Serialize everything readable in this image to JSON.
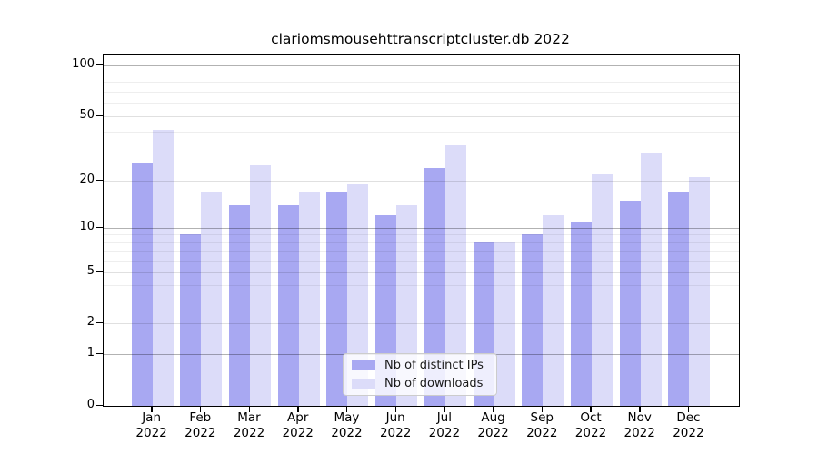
{
  "chart_data": {
    "type": "bar",
    "title": "clariomsmousehttranscriptcluster.db 2022",
    "categories": [
      "Jan",
      "Feb",
      "Mar",
      "Apr",
      "May",
      "Jun",
      "Jul",
      "Aug",
      "Sep",
      "Oct",
      "Nov",
      "Dec"
    ],
    "category_year": "2022",
    "series": [
      {
        "name": "Nb of distinct IPs",
        "color": "#a8a8f2",
        "values": [
          26,
          9,
          14,
          14,
          17,
          12,
          24,
          8,
          9,
          11,
          15,
          17
        ]
      },
      {
        "name": "Nb of downloads",
        "color": "#dcdcf9",
        "values": [
          41,
          17,
          25,
          17,
          19,
          14,
          33,
          8,
          12,
          22,
          30,
          21
        ]
      }
    ],
    "xlabel": "",
    "ylabel": "",
    "yscale": "log",
    "y_ticks": [
      {
        "value": 100,
        "label": "100"
      },
      {
        "value": 50,
        "label": "50"
      },
      {
        "value": 20,
        "label": "20"
      },
      {
        "value": 10,
        "label": "10"
      },
      {
        "value": 5,
        "label": "5"
      },
      {
        "value": 2,
        "label": "2"
      },
      {
        "value": 1,
        "label": "1"
      },
      {
        "value": 0,
        "label": "0"
      }
    ],
    "y_minor_gridlines": [
      2,
      3,
      4,
      5,
      6,
      7,
      8,
      9,
      20,
      30,
      40,
      50,
      60,
      70,
      80,
      90
    ],
    "y_major_gridlines": [
      1,
      10,
      100
    ],
    "grid": true,
    "legend_position": "lower center (inside plot)",
    "colors": {
      "axis": "#000000",
      "grid_major": "#b3b3b3",
      "grid_minor": "#f0f0f0",
      "background": "#ffffff"
    }
  },
  "legend": {
    "entries": [
      "Nb of distinct IPs",
      "Nb of downloads"
    ]
  }
}
